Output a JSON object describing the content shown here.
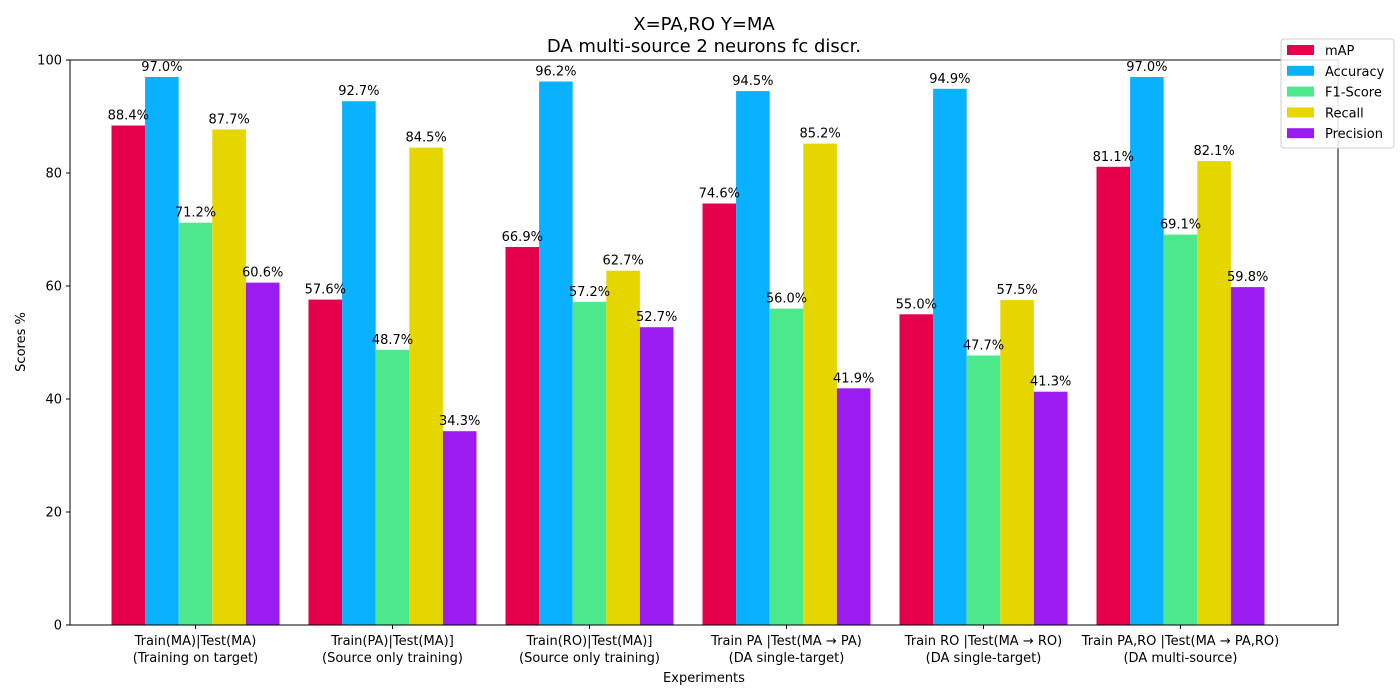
{
  "chart_data": {
    "type": "bar",
    "title_line1": "X=PA,RO Y=MA",
    "title_line2": "DA multi-source 2 neurons fc discr.",
    "xlabel": "Experiments",
    "ylabel": "Scores %",
    "ylim": [
      0,
      100
    ],
    "yticks": [
      "0",
      "20",
      "40",
      "60",
      "80",
      "100"
    ],
    "ytick_values": [
      0,
      20,
      40,
      60,
      80,
      100
    ],
    "legend_position": "top-right",
    "grid": false,
    "categories": [
      {
        "line1": "Train(MA)|Test(MA)",
        "line2": "(Training on target)"
      },
      {
        "line1": "Train(PA)|Test(MA)]",
        "line2": "(Source only training)"
      },
      {
        "line1": "Train(RO)|Test(MA)]",
        "line2": "(Source only training)"
      },
      {
        "line1": "Train PA |Test(MA → PA)",
        "line2": "(DA single-target)"
      },
      {
        "line1": "Train RO |Test(MA → RO)",
        "line2": "(DA single-target)"
      },
      {
        "line1": "Train PA,RO |Test(MA → PA,RO)",
        "line2": "(DA multi-source)"
      }
    ],
    "series": [
      {
        "name": "mAP",
        "color": "#e6004c",
        "values": [
          88.4,
          57.6,
          66.9,
          74.6,
          55.0,
          81.1
        ],
        "labels": [
          "88.4%",
          "57.6%",
          "66.9%",
          "74.6%",
          "55.0%",
          "81.1%"
        ]
      },
      {
        "name": "Accuracy",
        "color": "#0ab1ff",
        "values": [
          97.0,
          92.7,
          96.2,
          94.5,
          94.9,
          97.0
        ],
        "labels": [
          "97.0%",
          "92.7%",
          "96.2%",
          "94.5%",
          "94.9%",
          "97.0%"
        ]
      },
      {
        "name": "F1-Score",
        "color": "#4ee88c",
        "values": [
          71.2,
          48.7,
          57.2,
          56.0,
          47.7,
          69.1
        ],
        "labels": [
          "71.2%",
          "48.7%",
          "57.2%",
          "56.0%",
          "47.7%",
          "69.1%"
        ]
      },
      {
        "name": "Recall",
        "color": "#e6d600",
        "values": [
          87.7,
          84.5,
          62.7,
          85.2,
          57.5,
          82.1
        ],
        "labels": [
          "87.7%",
          "84.5%",
          "62.7%",
          "85.2%",
          "57.5%",
          "82.1%"
        ]
      },
      {
        "name": "Precision",
        "color": "#9b1cf0",
        "values": [
          60.6,
          34.3,
          52.7,
          41.9,
          41.3,
          59.8
        ],
        "labels": [
          "60.6%",
          "34.3%",
          "52.7%",
          "41.9%",
          "41.3%",
          "59.8%"
        ]
      }
    ]
  }
}
